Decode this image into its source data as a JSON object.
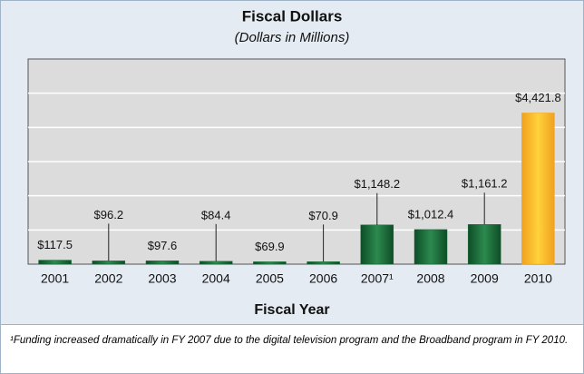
{
  "chart_data": {
    "type": "bar",
    "title": "Fiscal Dollars",
    "subtitle": "(Dollars in Millions)",
    "x_label": "Fiscal Year",
    "categories": [
      "2001",
      "2002",
      "2003",
      "2004",
      "2005",
      "2006",
      "2007¹",
      "2008",
      "2009",
      "2010"
    ],
    "values": [
      117.5,
      96.2,
      97.6,
      84.4,
      69.9,
      70.9,
      1148.2,
      1012.4,
      1161.2,
      4421.8
    ],
    "value_labels": [
      "$117.5",
      "$96.2",
      "$97.6",
      "$84.4",
      "$69.9",
      "$70.9",
      "$1,148.2",
      "$1,012.4",
      "$1,161.2",
      "$4,421.8"
    ],
    "colors": [
      "#1d6b3c",
      "#1d6b3c",
      "#1d6b3c",
      "#1d6b3c",
      "#1d6b3c",
      "#1d6b3c",
      "#1d6b3c",
      "#1d6b3c",
      "#1d6b3c",
      "#f2a81d"
    ],
    "ylim": [
      0,
      6000
    ],
    "yticks": [
      0,
      1000,
      2000,
      3000,
      4000,
      5000,
      6000
    ],
    "grid": true,
    "footnote": "¹Funding increased dramatically in FY 2007 due to the digital television program and the Broadband program in FY 2010."
  }
}
